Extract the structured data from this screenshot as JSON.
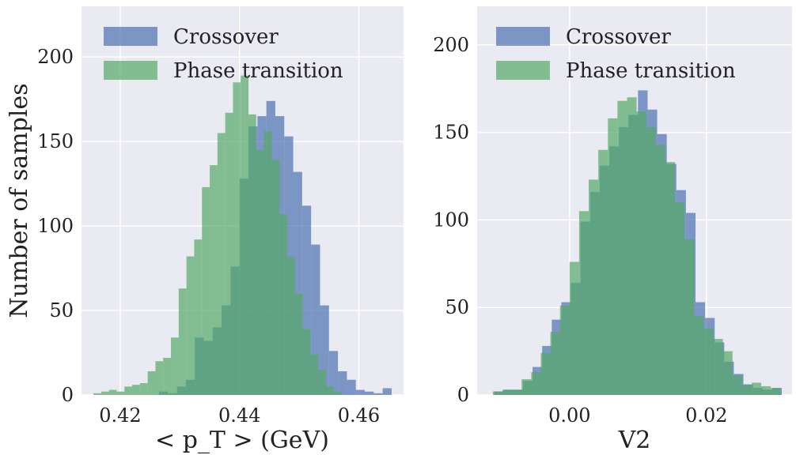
{
  "chart_data": [
    {
      "type": "histogram",
      "xlabel": "< p_T > (GeV)",
      "ylabel": "Number of samples",
      "xlim": [
        0.4135,
        0.4675
      ],
      "ylim": [
        0,
        230
      ],
      "xticks": [
        "0.42",
        "0.44",
        "0.46"
      ],
      "xtick_values": [
        0.42,
        0.44,
        0.46
      ],
      "yticks": [
        "0",
        "50",
        "100",
        "150",
        "200"
      ],
      "ytick_values": [
        0,
        50,
        100,
        150,
        200
      ],
      "grid": true,
      "legend": "top-left",
      "series": [
        {
          "name": "Crossover",
          "color": "#4c72b0",
          "bins": [
            [
              0.4175,
              0.419,
              0
            ],
            [
              0.419,
              0.4205,
              0
            ],
            [
              0.4205,
              0.422,
              0
            ],
            [
              0.422,
              0.4235,
              0
            ],
            [
              0.4235,
              0.425,
              0
            ],
            [
              0.425,
              0.4265,
              0
            ],
            [
              0.4265,
              0.428,
              2
            ],
            [
              0.428,
              0.4295,
              1
            ],
            [
              0.4295,
              0.431,
              5
            ],
            [
              0.431,
              0.4325,
              9
            ],
            [
              0.4325,
              0.434,
              34
            ],
            [
              0.434,
              0.4355,
              32
            ],
            [
              0.4355,
              0.437,
              40
            ],
            [
              0.437,
              0.4385,
              53
            ],
            [
              0.4385,
              0.44,
              76
            ],
            [
              0.44,
              0.4415,
              128
            ],
            [
              0.4415,
              0.443,
              159
            ],
            [
              0.443,
              0.4445,
              165
            ],
            [
              0.4445,
              0.446,
              174
            ],
            [
              0.446,
              0.4475,
              165
            ],
            [
              0.4475,
              0.449,
              153
            ],
            [
              0.449,
              0.4505,
              132
            ],
            [
              0.4505,
              0.452,
              112
            ],
            [
              0.452,
              0.4535,
              89
            ],
            [
              0.4535,
              0.455,
              53
            ],
            [
              0.455,
              0.4565,
              26
            ],
            [
              0.4565,
              0.458,
              14
            ],
            [
              0.458,
              0.4595,
              9
            ],
            [
              0.4595,
              0.461,
              3
            ],
            [
              0.461,
              0.4625,
              2
            ],
            [
              0.4625,
              0.464,
              1
            ],
            [
              0.464,
              0.4655,
              4
            ]
          ]
        },
        {
          "name": "Phase transition",
          "color": "#55a868",
          "bins": [
            [
              0.4155,
              0.4168,
              1
            ],
            [
              0.4168,
              0.4181,
              2
            ],
            [
              0.4181,
              0.4194,
              3
            ],
            [
              0.4194,
              0.4207,
              2
            ],
            [
              0.4207,
              0.422,
              5
            ],
            [
              0.422,
              0.4233,
              6
            ],
            [
              0.4233,
              0.4246,
              7
            ],
            [
              0.4246,
              0.4259,
              14
            ],
            [
              0.4259,
              0.4272,
              20
            ],
            [
              0.4272,
              0.4285,
              22
            ],
            [
              0.4285,
              0.4298,
              34
            ],
            [
              0.4298,
              0.4311,
              63
            ],
            [
              0.4311,
              0.4324,
              82
            ],
            [
              0.4324,
              0.4337,
              92
            ],
            [
              0.4337,
              0.435,
              123
            ],
            [
              0.435,
              0.4363,
              136
            ],
            [
              0.4363,
              0.4376,
              155
            ],
            [
              0.4376,
              0.4389,
              167
            ],
            [
              0.4389,
              0.4402,
              185
            ],
            [
              0.4402,
              0.4415,
              189
            ],
            [
              0.4415,
              0.4428,
              166
            ],
            [
              0.4428,
              0.4441,
              145
            ],
            [
              0.4441,
              0.4454,
              156
            ],
            [
              0.4454,
              0.4467,
              139
            ],
            [
              0.4467,
              0.448,
              107
            ],
            [
              0.448,
              0.4493,
              82
            ],
            [
              0.4493,
              0.4506,
              60
            ],
            [
              0.4506,
              0.4519,
              39
            ],
            [
              0.4519,
              0.4532,
              24
            ],
            [
              0.4532,
              0.4545,
              15
            ],
            [
              0.4545,
              0.4558,
              5
            ],
            [
              0.4558,
              0.4571,
              2
            ]
          ]
        }
      ]
    },
    {
      "type": "histogram",
      "xlabel": "V2",
      "ylabel": "",
      "xlim": [
        -0.0135,
        0.0325
      ],
      "ylim": [
        0,
        222
      ],
      "xticks": [
        "0.00",
        "0.02"
      ],
      "xtick_values": [
        0.0,
        0.02
      ],
      "yticks": [
        "0",
        "50",
        "100",
        "150",
        "200"
      ],
      "ytick_values": [
        0,
        50,
        100,
        150,
        200
      ],
      "grid": true,
      "legend": "top-left",
      "series": [
        {
          "name": "Crossover",
          "color": "#4c72b0",
          "bins": [
            [
              -0.011,
              -0.0096,
              2
            ],
            [
              -0.0096,
              -0.0082,
              3
            ],
            [
              -0.0082,
              -0.0068,
              3
            ],
            [
              -0.0068,
              -0.0054,
              8
            ],
            [
              -0.0054,
              -0.004,
              16
            ],
            [
              -0.004,
              -0.0026,
              28
            ],
            [
              -0.0026,
              -0.0012,
              43
            ],
            [
              -0.0012,
              0.0002,
              53
            ],
            [
              0.0002,
              0.0016,
              64
            ],
            [
              0.0016,
              0.003,
              99
            ],
            [
              0.003,
              0.0044,
              116
            ],
            [
              0.0044,
              0.0058,
              131
            ],
            [
              0.0058,
              0.0072,
              142
            ],
            [
              0.0072,
              0.0086,
              153
            ],
            [
              0.0086,
              0.01,
              160
            ],
            [
              0.01,
              0.0114,
              174
            ],
            [
              0.0114,
              0.0128,
              163
            ],
            [
              0.0128,
              0.0142,
              149
            ],
            [
              0.0142,
              0.0156,
              132
            ],
            [
              0.0156,
              0.017,
              117
            ],
            [
              0.017,
              0.0184,
              104
            ],
            [
              0.0184,
              0.0198,
              53
            ],
            [
              0.0198,
              0.0212,
              44
            ],
            [
              0.0212,
              0.0226,
              30
            ],
            [
              0.0226,
              0.024,
              19
            ],
            [
              0.024,
              0.0254,
              12
            ],
            [
              0.0254,
              0.0268,
              6
            ],
            [
              0.0268,
              0.0282,
              4
            ],
            [
              0.0282,
              0.0296,
              3
            ],
            [
              0.0296,
              0.031,
              4
            ]
          ]
        },
        {
          "name": "Phase transition",
          "color": "#55a868",
          "bins": [
            [
              -0.0112,
              -0.0098,
              2
            ],
            [
              -0.0098,
              -0.0084,
              3
            ],
            [
              -0.0084,
              -0.007,
              3
            ],
            [
              -0.007,
              -0.0056,
              9
            ],
            [
              -0.0056,
              -0.0042,
              13
            ],
            [
              -0.0042,
              -0.0028,
              24
            ],
            [
              -0.0028,
              -0.0014,
              36
            ],
            [
              -0.0014,
              0.0,
              51
            ],
            [
              0.0,
              0.0014,
              76
            ],
            [
              0.0014,
              0.0028,
              105
            ],
            [
              0.0028,
              0.0042,
              123
            ],
            [
              0.0042,
              0.0056,
              140
            ],
            [
              0.0056,
              0.007,
              158
            ],
            [
              0.007,
              0.0084,
              168
            ],
            [
              0.0084,
              0.0098,
              170
            ],
            [
              0.0098,
              0.0112,
              162
            ],
            [
              0.0112,
              0.0126,
              153
            ],
            [
              0.0126,
              0.014,
              143
            ],
            [
              0.014,
              0.0154,
              133
            ],
            [
              0.0154,
              0.0168,
              110
            ],
            [
              0.0168,
              0.0182,
              89
            ],
            [
              0.0182,
              0.0196,
              45
            ],
            [
              0.0196,
              0.021,
              38
            ],
            [
              0.021,
              0.0224,
              32
            ],
            [
              0.0224,
              0.0238,
              25
            ],
            [
              0.0238,
              0.0252,
              11
            ],
            [
              0.0252,
              0.0266,
              6
            ],
            [
              0.0266,
              0.028,
              7
            ],
            [
              0.028,
              0.0294,
              5
            ],
            [
              0.0294,
              0.0308,
              4
            ]
          ]
        }
      ]
    }
  ]
}
